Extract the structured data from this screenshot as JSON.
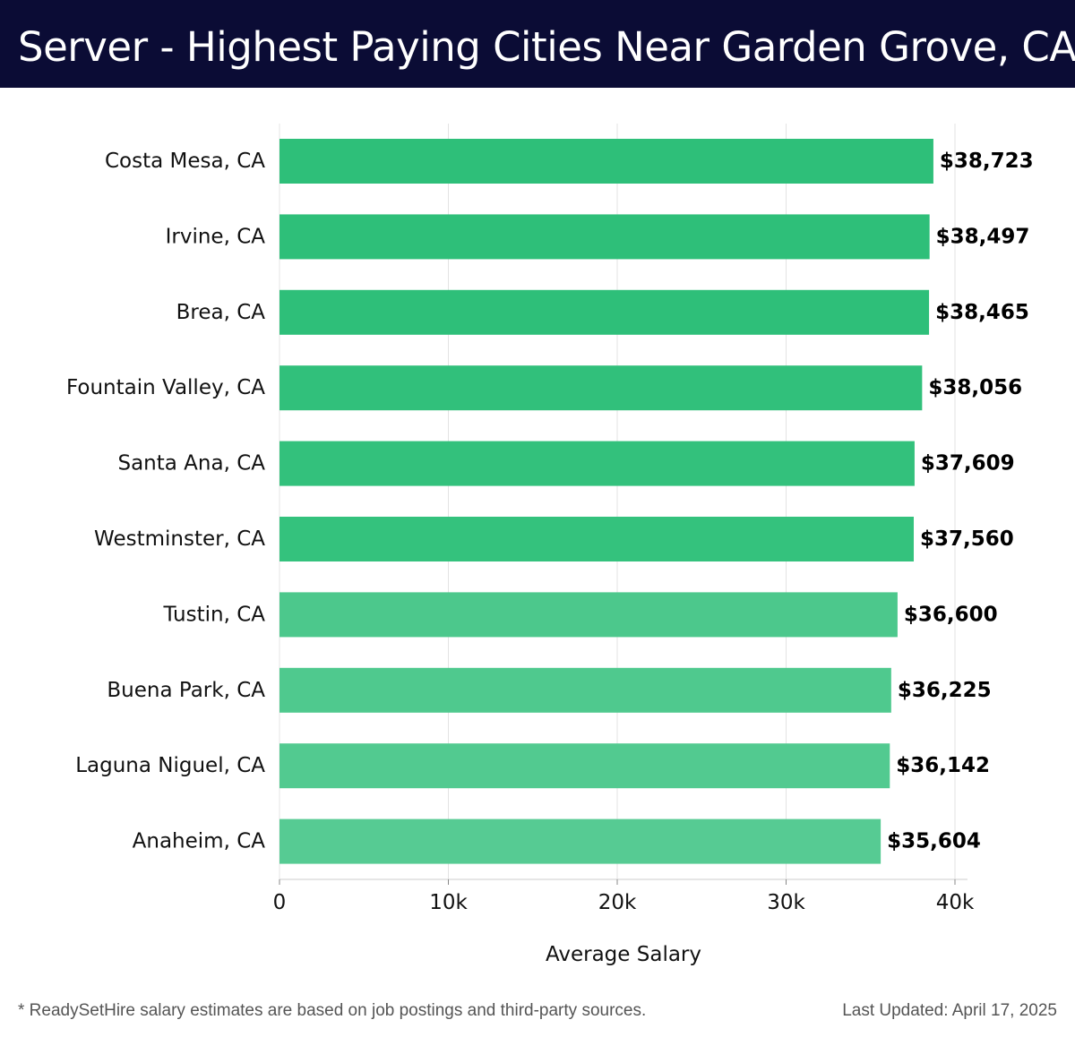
{
  "header": {
    "title": "Server - Highest Paying Cities Near Garden Grove, CA"
  },
  "chart_data": {
    "type": "bar",
    "orientation": "horizontal",
    "title": "Server - Highest Paying Cities Near Garden Grove, CA",
    "xlabel": "Average Salary",
    "ylabel": "",
    "xlim": [
      0,
      40000
    ],
    "xticks": [
      0,
      10000,
      20000,
      30000,
      40000
    ],
    "xtick_labels": [
      "0",
      "10k",
      "20k",
      "30k",
      "40k"
    ],
    "grid": "vertical",
    "legend": "none",
    "categories": [
      "Costa Mesa, CA",
      "Irvine, CA",
      "Brea, CA",
      "Fountain Valley, CA",
      "Santa Ana, CA",
      "Westminster, CA",
      "Tustin, CA",
      "Buena Park, CA",
      "Laguna Niguel, CA",
      "Anaheim, CA"
    ],
    "values": [
      38723,
      38497,
      38465,
      38056,
      37609,
      37560,
      36600,
      36225,
      36142,
      35604
    ],
    "value_labels": [
      "$38,723",
      "$38,497",
      "$38,465",
      "$38,056",
      "$37,609",
      "$37,560",
      "$36,600",
      "$36,225",
      "$36,142",
      "$35,604"
    ],
    "colors": [
      "#2ebf79",
      "#2ebf79",
      "#2ebf79",
      "#31c07b",
      "#33c17c",
      "#34c27d",
      "#4cc88c",
      "#4fc98e",
      "#52ca90",
      "#56cb93"
    ]
  },
  "footer": {
    "note": "* ReadySetHire salary estimates are based on job postings and third-party sources.",
    "updated": "Last Updated: April 17, 2025"
  }
}
